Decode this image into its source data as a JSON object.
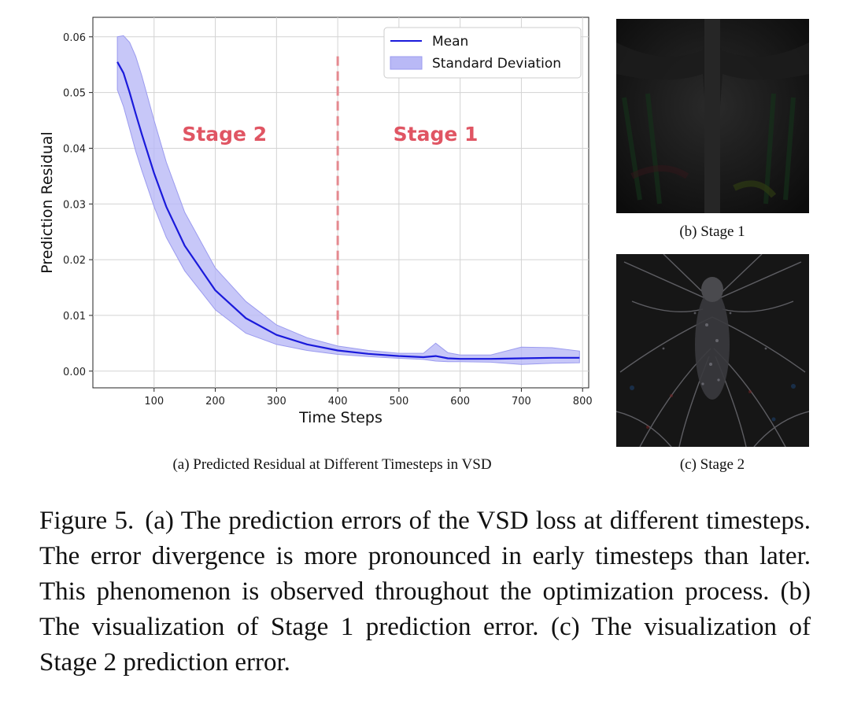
{
  "figure": {
    "number_label": "Figure 5.",
    "caption": "(a) The prediction errors of the VSD loss at different timesteps. The error divergence is more pronounced in early timesteps than later. This phenomenon is observed throughout the optimization process. (b) The visualization of Stage 1 prediction error. (c) The visualization of Stage 2 prediction error."
  },
  "subfigures": {
    "a_caption": "(a) Predicted Residual at Different Timesteps in VSD",
    "b_caption": "(b) Stage 1",
    "c_caption": "(c) Stage 2"
  },
  "chart_data": {
    "type": "line",
    "xlabel": "Time Steps",
    "ylabel": "Prediction Residual",
    "xlim": [
      0,
      810
    ],
    "ylim": [
      -0.003,
      0.0635
    ],
    "xticks": [
      100,
      200,
      300,
      400,
      500,
      600,
      700,
      800
    ],
    "yticks": [
      0.0,
      0.01,
      0.02,
      0.03,
      0.04,
      0.05,
      0.06
    ],
    "ytick_labels": [
      "0.00",
      "0.01",
      "0.02",
      "0.03",
      "0.04",
      "0.05",
      "0.06"
    ],
    "grid": true,
    "legend_position": "top-right",
    "series": [
      {
        "name": "Mean",
        "color": "#1a1adb",
        "x": [
          40,
          50,
          60,
          70,
          80,
          100,
          120,
          150,
          200,
          250,
          300,
          350,
          400,
          450,
          500,
          540,
          560,
          580,
          600,
          650,
          700,
          750,
          795
        ],
        "y": [
          0.0555,
          0.0535,
          0.05,
          0.0462,
          0.0425,
          0.0355,
          0.0295,
          0.0225,
          0.0145,
          0.0095,
          0.0065,
          0.0048,
          0.0037,
          0.0031,
          0.0027,
          0.0025,
          0.0027,
          0.0023,
          0.0022,
          0.0022,
          0.0023,
          0.0024,
          0.0024
        ]
      },
      {
        "name": "Standard Deviation",
        "color": "#b9b9f6",
        "x": [
          40,
          50,
          60,
          70,
          80,
          100,
          120,
          150,
          200,
          250,
          300,
          350,
          400,
          450,
          500,
          540,
          560,
          580,
          600,
          650,
          700,
          750,
          795
        ],
        "upper": [
          0.06,
          0.0602,
          0.059,
          0.0565,
          0.053,
          0.045,
          0.0375,
          0.0285,
          0.0185,
          0.0125,
          0.0083,
          0.006,
          0.0045,
          0.0037,
          0.0032,
          0.0032,
          0.005,
          0.0033,
          0.0029,
          0.0029,
          0.0043,
          0.0042,
          0.0036
        ],
        "lower": [
          0.0505,
          0.0475,
          0.0435,
          0.0395,
          0.036,
          0.0295,
          0.024,
          0.018,
          0.011,
          0.0068,
          0.0048,
          0.0037,
          0.003,
          0.0026,
          0.0023,
          0.0021,
          0.0018,
          0.0017,
          0.0017,
          0.0016,
          0.0012,
          0.0014,
          0.0015
        ]
      }
    ],
    "annotations": [
      {
        "text": "Stage 2",
        "x": 215,
        "y": 0.0413
      },
      {
        "text": "Stage 1",
        "x": 560,
        "y": 0.0413
      }
    ],
    "vline": {
      "x": 400,
      "y_from": 0.006,
      "y_to": 0.0565,
      "color": "#e58a90",
      "style": "dashed"
    }
  },
  "colors": {
    "stage_text": "#e05563",
    "mean_line": "#1a1adb",
    "std_fill": "#b9b9f6",
    "grid": "#d3d3d3"
  },
  "images": {
    "stage1_icon": "dark-residual-visualization",
    "stage2_icon": "butterfly-residual-visualization"
  }
}
